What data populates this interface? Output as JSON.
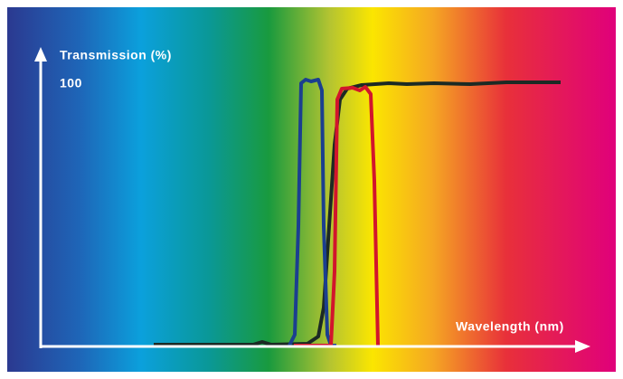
{
  "axes": {
    "y_label": "Transmission (%)",
    "y_max_label": "100",
    "x_label": "Wavelength (nm)"
  }
}
